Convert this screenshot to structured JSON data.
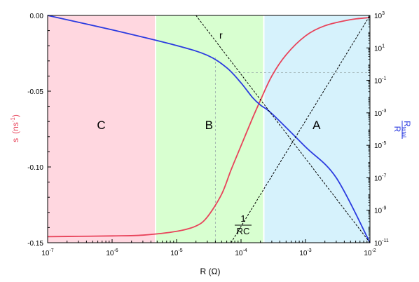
{
  "chart_data": {
    "type": "line",
    "title": "",
    "xlabel": "R (Ω)",
    "x_scale": "log",
    "xlim": [
      1e-07,
      0.01
    ],
    "x_ticks": [
      {
        "label": "10",
        "exp": "-7"
      },
      {
        "label": "10",
        "exp": "-6"
      },
      {
        "label": "10",
        "exp": "-5"
      },
      {
        "label": "10",
        "exp": "-4"
      },
      {
        "label": "10",
        "exp": "-3"
      },
      {
        "label": "10",
        "exp": "-2"
      }
    ],
    "ylabel_left": "s",
    "ylabel_left_unit": "(ns",
    "ylabel_left_unit_exp": "-1",
    "ylabel_left_unit_close": ")",
    "ylim_left": [
      -0.15,
      0.0
    ],
    "y_ticks_left": [
      "0.00",
      "-0.05",
      "-0.10",
      "-0.15"
    ],
    "ylabel_right_num": "R",
    "ylabel_right_sub": "total",
    "ylabel_right_den": "R",
    "y_scale_right": "log",
    "ylim_right": [
      1e-11,
      1000.0
    ],
    "y_ticks_right": [
      {
        "label": "10",
        "exp": "3"
      },
      {
        "label": "10",
        "exp": "1"
      },
      {
        "label": "10",
        "exp": "-1"
      },
      {
        "label": "10",
        "exp": "-3"
      },
      {
        "label": "10",
        "exp": "-5"
      },
      {
        "label": "10",
        "exp": "-7"
      },
      {
        "label": "10",
        "exp": "-9"
      },
      {
        "label": "10",
        "exp": "-11"
      }
    ],
    "regions": [
      {
        "label": "C",
        "x_from": 1e-07,
        "x_to": 4.6e-06,
        "color": "#ffd7e0"
      },
      {
        "label": "B",
        "x_from": 4.6e-06,
        "x_to": 0.00022,
        "color": "#d8ffd0"
      },
      {
        "label": "A",
        "x_from": 0.00022,
        "x_to": 0.01,
        "color": "#d6f2fc"
      }
    ],
    "series": [
      {
        "axis": "left",
        "color": "#e8435a",
        "x": [
          1e-07,
          3e-07,
          1e-06,
          3e-06,
          1e-05,
          2e-05,
          3e-05,
          5e-05,
          7e-05,
          0.0001,
          0.00015,
          0.0002,
          0.0003,
          0.0005,
          0.001,
          0.002,
          0.005,
          0.01
        ],
        "y": [
          -0.146,
          -0.1458,
          -0.1455,
          -0.145,
          -0.1425,
          -0.139,
          -0.133,
          -0.118,
          -0.102,
          -0.086,
          -0.068,
          -0.056,
          -0.04,
          -0.026,
          -0.0135,
          -0.0068,
          -0.0028,
          -0.0014
        ]
      },
      {
        "axis": "right",
        "color": "#2b3be0",
        "x": [
          1e-07,
          1e-06,
          1e-05,
          3e-05,
          6e-05,
          0.0001,
          0.00015,
          0.0002,
          0.0003,
          0.001,
          0.003,
          0.01
        ],
        "y": [
          1000,
          130,
          14,
          3.5,
          0.6,
          0.07,
          0.009,
          0.003,
          0.0009,
          8e-06,
          1e-07,
          1e-11
        ]
      }
    ],
    "asymptote_r": {
      "label": "r",
      "x": [
        2e-05,
        0.01
      ],
      "y": [
        1000,
        1e-11
      ]
    },
    "asymptote_rc": {
      "label_num": "1",
      "label_den": "RC",
      "x": [
        7e-05,
        0.01
      ],
      "y": [
        -0.15,
        0.0
      ]
    },
    "reference_lines": {
      "x": 4e-05,
      "y_right": 0.3
    }
  }
}
